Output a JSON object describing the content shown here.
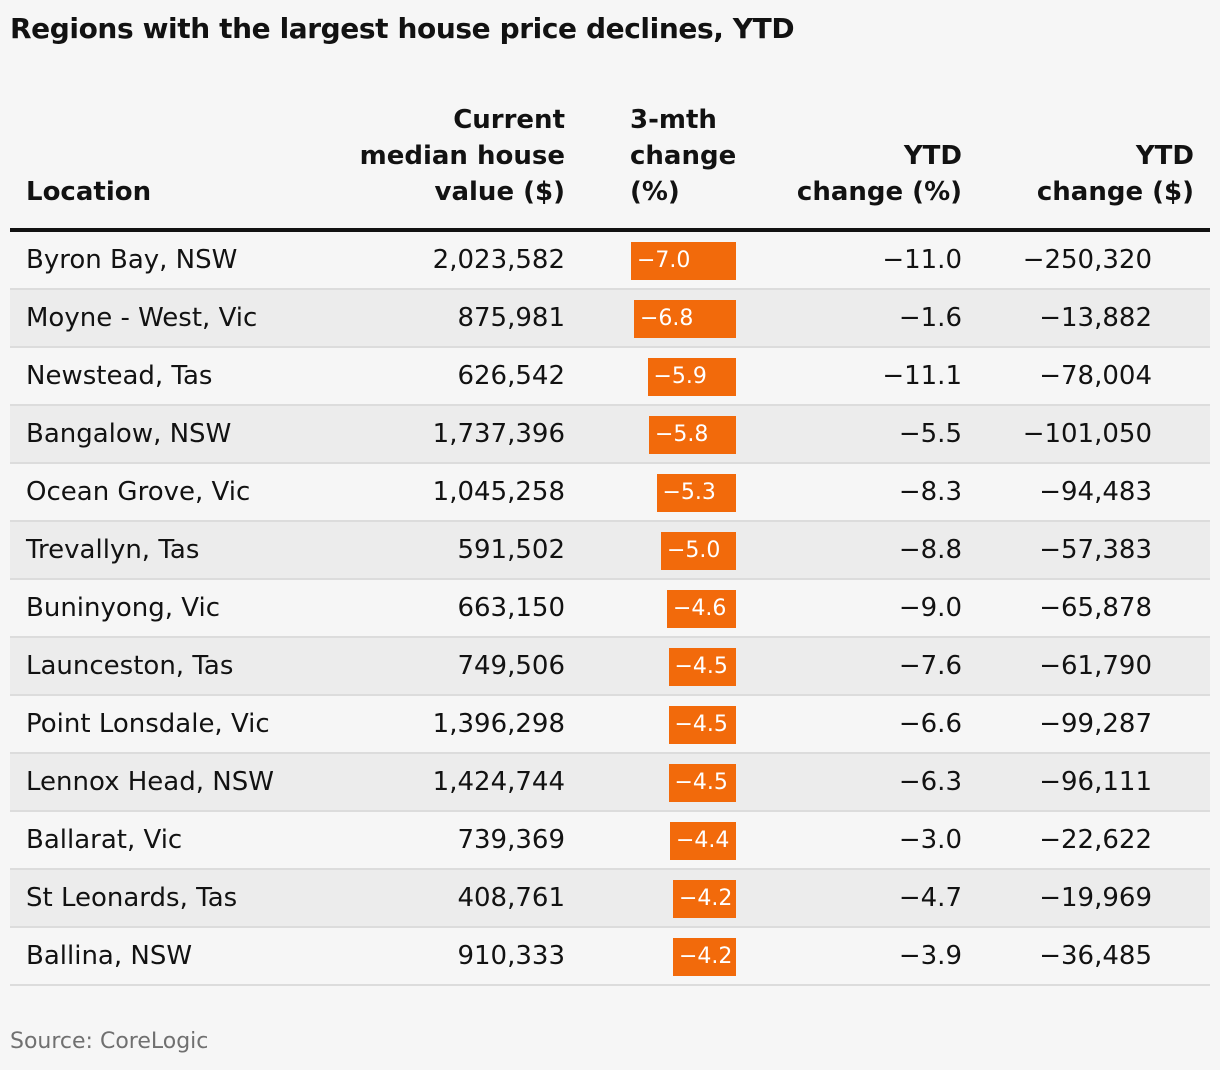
{
  "title": "Regions with the largest house price declines, YTD",
  "source": "Source: CoreLogic",
  "colors": {
    "bar": "#f26a0b",
    "rule": "#121212",
    "alt_row": "#ececec"
  },
  "headers": {
    "location": "Location",
    "value": "Current\nmedian house\nvalue ($)",
    "change3m": "3-mth\nchange\n(%)",
    "ytd_pct": "YTD\nchange (%)",
    "ytd_dollar": "YTD\nchange ($)"
  },
  "chart_data": {
    "type": "table",
    "title": "Regions with the largest house price declines, YTD",
    "columns": [
      "Location",
      "Current median house value ($)",
      "3-mth change (%)",
      "YTD change (%)",
      "YTD change ($)"
    ],
    "bar_column": "3-mth change (%)",
    "bar_scale_max": 7.0,
    "rows": [
      {
        "location": "Byron Bay, NSW",
        "value": "2,023,582",
        "change3m": -7.0,
        "change3m_label": "−7.0",
        "ytd_pct": "−11.0",
        "ytd_dollar": "−250,320"
      },
      {
        "location": "Moyne - West, Vic",
        "value": "875,981",
        "change3m": -6.8,
        "change3m_label": "−6.8",
        "ytd_pct": "−1.6",
        "ytd_dollar": "−13,882"
      },
      {
        "location": "Newstead, Tas",
        "value": "626,542",
        "change3m": -5.9,
        "change3m_label": "−5.9",
        "ytd_pct": "−11.1",
        "ytd_dollar": "−78,004"
      },
      {
        "location": "Bangalow, NSW",
        "value": "1,737,396",
        "change3m": -5.8,
        "change3m_label": "−5.8",
        "ytd_pct": "−5.5",
        "ytd_dollar": "−101,050"
      },
      {
        "location": "Ocean Grove, Vic",
        "value": "1,045,258",
        "change3m": -5.3,
        "change3m_label": "−5.3",
        "ytd_pct": "−8.3",
        "ytd_dollar": "−94,483"
      },
      {
        "location": "Trevallyn, Tas",
        "value": "591,502",
        "change3m": -5.0,
        "change3m_label": "−5.0",
        "ytd_pct": "−8.8",
        "ytd_dollar": "−57,383"
      },
      {
        "location": "Buninyong, Vic",
        "value": "663,150",
        "change3m": -4.6,
        "change3m_label": "−4.6",
        "ytd_pct": "−9.0",
        "ytd_dollar": "−65,878"
      },
      {
        "location": "Launceston, Tas",
        "value": "749,506",
        "change3m": -4.5,
        "change3m_label": "−4.5",
        "ytd_pct": "−7.6",
        "ytd_dollar": "−61,790"
      },
      {
        "location": "Point Lonsdale, Vic",
        "value": "1,396,298",
        "change3m": -4.5,
        "change3m_label": "−4.5",
        "ytd_pct": "−6.6",
        "ytd_dollar": "−99,287"
      },
      {
        "location": "Lennox Head, NSW",
        "value": "1,424,744",
        "change3m": -4.5,
        "change3m_label": "−4.5",
        "ytd_pct": "−6.3",
        "ytd_dollar": "−96,111"
      },
      {
        "location": "Ballarat, Vic",
        "value": "739,369",
        "change3m": -4.4,
        "change3m_label": "−4.4",
        "ytd_pct": "−3.0",
        "ytd_dollar": "−22,622"
      },
      {
        "location": "St Leonards, Tas",
        "value": "408,761",
        "change3m": -4.2,
        "change3m_label": "−4.2",
        "ytd_pct": "−4.7",
        "ytd_dollar": "−19,969"
      },
      {
        "location": "Ballina, NSW",
        "value": "910,333",
        "change3m": -4.2,
        "change3m_label": "−4.2",
        "ytd_pct": "−3.9",
        "ytd_dollar": "−36,485"
      }
    ]
  }
}
